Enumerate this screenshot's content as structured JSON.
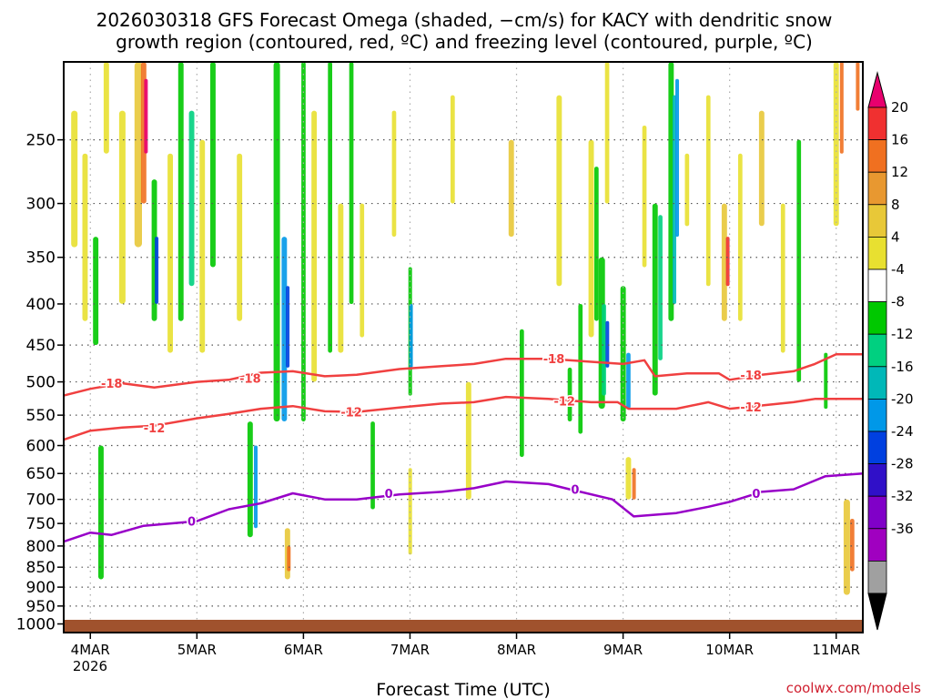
{
  "chart_data": {
    "type": "heatmap",
    "title_line1": "2026030318 GFS Forecast Omega (shaded, −cm/s) for KACY with dendritic snow",
    "title_line2": "growth region (contoured, red, ºC) and freezing level (contoured, purple, ºC)",
    "xlabel": "Forecast Time (UTC)",
    "credit": "coolwx.com/models",
    "x_ticks": [
      {
        "day": 4,
        "label": "4MAR"
      },
      {
        "day": 5,
        "label": "5MAR"
      },
      {
        "day": 6,
        "label": "6MAR"
      },
      {
        "day": 7,
        "label": "7MAR"
      },
      {
        "day": 8,
        "label": "8MAR"
      },
      {
        "day": 9,
        "label": "9MAR"
      },
      {
        "day": 10,
        "label": "10MAR"
      },
      {
        "day": 11,
        "label": "11MAR"
      }
    ],
    "x_year_label": "2026",
    "xlim_days": [
      3.75,
      11.25
    ],
    "y_ticks": [
      250,
      300,
      350,
      400,
      450,
      500,
      550,
      600,
      650,
      700,
      750,
      800,
      850,
      900,
      950,
      1000
    ],
    "ylim_hpa": [
      200,
      1025
    ],
    "colorbar": {
      "labels": [
        "20",
        "16",
        "12",
        "8",
        "4",
        "-4",
        "-8",
        "-12",
        "-16",
        "-20",
        "-24",
        "-28",
        "-32",
        "-36"
      ],
      "colors": [
        "#e8006e",
        "#f03030",
        "#f07020",
        "#e89830",
        "#e8c838",
        "#e8e030",
        "#ffffff",
        "#00c800",
        "#00d080",
        "#00b8b8",
        "#0098e8",
        "#0040e0",
        "#3010c8",
        "#8000c8",
        "#a000c0",
        "#a0a0a0",
        "#000000"
      ]
    },
    "contours": [
      {
        "name": "dgz-minus18",
        "color": "#f04040",
        "label": "-18",
        "points": [
          [
            3.75,
            520
          ],
          [
            4.0,
            510
          ],
          [
            4.3,
            502
          ],
          [
            4.6,
            508
          ],
          [
            5.0,
            500
          ],
          [
            5.3,
            497
          ],
          [
            5.6,
            487
          ],
          [
            5.9,
            485
          ],
          [
            6.2,
            492
          ],
          [
            6.5,
            490
          ],
          [
            6.9,
            482
          ],
          [
            7.3,
            478
          ],
          [
            7.6,
            475
          ],
          [
            7.9,
            468
          ],
          [
            8.3,
            468
          ],
          [
            8.7,
            472
          ],
          [
            9.0,
            475
          ],
          [
            9.2,
            470
          ],
          [
            9.3,
            492
          ],
          [
            9.6,
            488
          ],
          [
            9.9,
            488
          ],
          [
            10.0,
            497
          ],
          [
            10.3,
            490
          ],
          [
            10.6,
            485
          ],
          [
            10.8,
            475
          ],
          [
            11.0,
            462
          ],
          [
            11.25,
            462
          ]
        ],
        "label_at": [
          [
            4.2,
            502
          ],
          [
            5.5,
            495
          ],
          [
            8.35,
            468
          ],
          [
            10.2,
            490
          ]
        ]
      },
      {
        "name": "dgz-minus12",
        "color": "#f04040",
        "label": "-12",
        "points": [
          [
            3.75,
            590
          ],
          [
            4.0,
            575
          ],
          [
            4.3,
            570
          ],
          [
            4.6,
            567
          ],
          [
            5.0,
            555
          ],
          [
            5.3,
            548
          ],
          [
            5.6,
            540
          ],
          [
            5.9,
            536
          ],
          [
            6.2,
            544
          ],
          [
            6.5,
            545
          ],
          [
            6.9,
            538
          ],
          [
            7.3,
            532
          ],
          [
            7.6,
            530
          ],
          [
            7.9,
            522
          ],
          [
            8.3,
            525
          ],
          [
            8.7,
            530
          ],
          [
            8.95,
            530
          ],
          [
            9.05,
            540
          ],
          [
            9.5,
            540
          ],
          [
            9.8,
            530
          ],
          [
            10.0,
            540
          ],
          [
            10.3,
            535
          ],
          [
            10.6,
            530
          ],
          [
            10.8,
            525
          ],
          [
            11.25,
            525
          ]
        ],
        "label_at": [
          [
            4.6,
            570
          ],
          [
            6.45,
            545
          ],
          [
            8.45,
            528
          ],
          [
            10.2,
            537
          ]
        ]
      },
      {
        "name": "freezing-level-0C",
        "color": "#9800c8",
        "label": "0",
        "points": [
          [
            3.75,
            790
          ],
          [
            4.0,
            770
          ],
          [
            4.2,
            775
          ],
          [
            4.5,
            755
          ],
          [
            5.0,
            745
          ],
          [
            5.3,
            720
          ],
          [
            5.6,
            708
          ],
          [
            5.9,
            688
          ],
          [
            6.2,
            700
          ],
          [
            6.5,
            700
          ],
          [
            6.9,
            690
          ],
          [
            7.3,
            685
          ],
          [
            7.6,
            678
          ],
          [
            7.9,
            665
          ],
          [
            8.3,
            670
          ],
          [
            8.5,
            680
          ],
          [
            8.9,
            700
          ],
          [
            9.1,
            735
          ],
          [
            9.5,
            728
          ],
          [
            9.8,
            715
          ],
          [
            10.0,
            705
          ],
          [
            10.3,
            685
          ],
          [
            10.6,
            680
          ],
          [
            10.9,
            655
          ],
          [
            11.25,
            650
          ]
        ],
        "label_at": [
          [
            4.95,
            745
          ],
          [
            6.8,
            688
          ],
          [
            8.55,
            680
          ],
          [
            10.25,
            688
          ]
        ]
      }
    ]
  }
}
